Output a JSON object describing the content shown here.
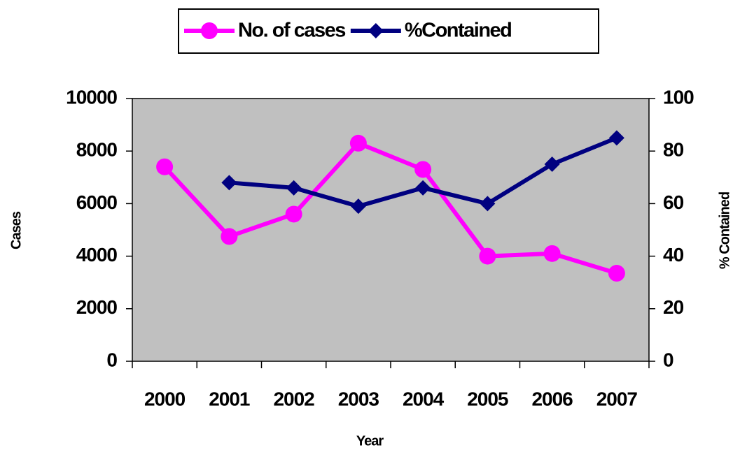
{
  "chart_data": {
    "type": "line",
    "x_label": "Year",
    "y_label": "Cases",
    "y2_label": "% Contained",
    "categories": [
      "2000",
      "2001",
      "2002",
      "2003",
      "2004",
      "2005",
      "2006",
      "2007"
    ],
    "series": [
      {
        "name": "No. of cases",
        "color": "#ff00ff",
        "marker": "circle",
        "values": [
          7400,
          4750,
          5600,
          8300,
          7300,
          4000,
          4100,
          3350
        ]
      },
      {
        "name": "%Contained",
        "color": "#000080",
        "marker": "diamond",
        "axis": "y2",
        "values": [
          null,
          68,
          66,
          59,
          66,
          60,
          75,
          85
        ]
      }
    ],
    "ylim": [
      0,
      10000
    ],
    "yticks": [
      0,
      2000,
      4000,
      6000,
      8000,
      10000
    ],
    "y2lim": [
      0,
      100
    ],
    "y2ticks": [
      0,
      20,
      40,
      60,
      80,
      100
    ],
    "plot_background": "#c0c0c0",
    "legend": "top"
  }
}
